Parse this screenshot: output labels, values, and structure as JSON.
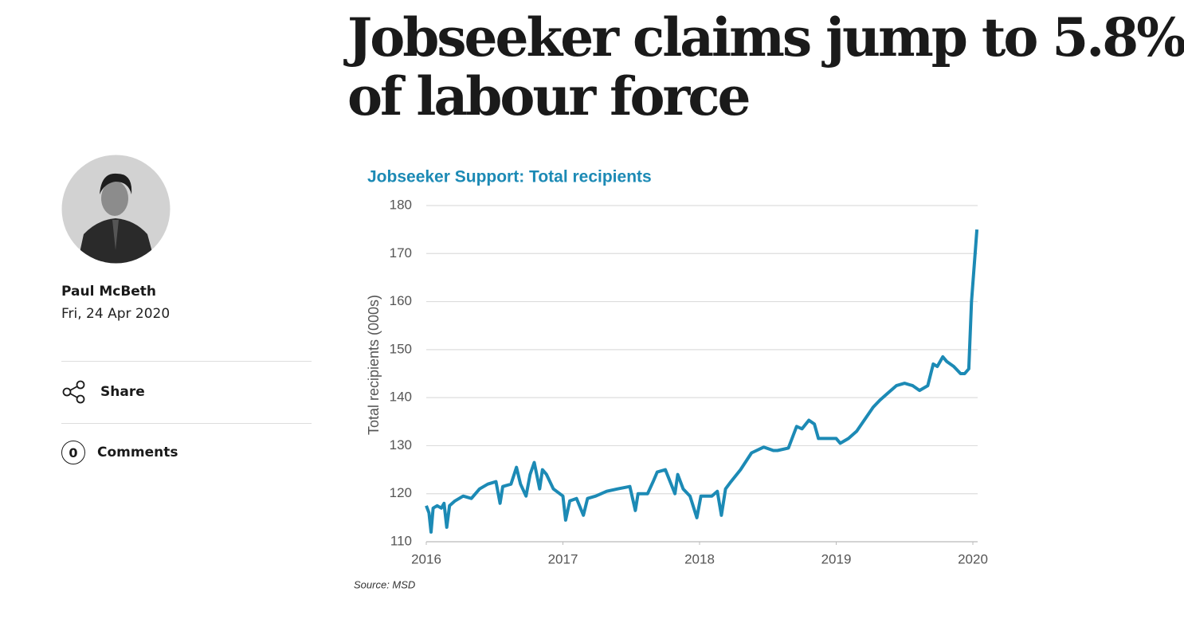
{
  "article": {
    "headline": [
      "Jobseeker claims jump to 5.8%",
      "of labour force"
    ],
    "author": "Paul McBeth",
    "date": "Fri, 24 Apr 2020",
    "share": "Share",
    "comments_count": "0",
    "comments": "Comments"
  },
  "chart_data": {
    "type": "line",
    "title": "Jobseeker Support: Total recipients",
    "y_label": "Total recipients (000s)",
    "source": "Source: MSD",
    "xlim": [
      2016,
      2020
    ],
    "xticks": [
      2016,
      2017,
      2018,
      2019,
      2020
    ],
    "ylim": [
      110,
      180
    ],
    "yticks": [
      110,
      120,
      130,
      140,
      150,
      160,
      170,
      180
    ],
    "grid": true,
    "series": [
      {
        "name": "Total recipients",
        "color": "#1c8ab5",
        "x": [
          2016.0,
          2016.02,
          2016.035,
          2016.05,
          2016.08,
          2016.11,
          2016.13,
          2016.15,
          2016.17,
          2016.21,
          2016.27,
          2016.33,
          2016.39,
          2016.45,
          2016.51,
          2016.54,
          2016.56,
          2016.62,
          2016.66,
          2016.69,
          2016.73,
          2016.76,
          2016.79,
          2016.83,
          2016.85,
          2016.88,
          2016.93,
          2017.0,
          2017.02,
          2017.05,
          2017.1,
          2017.15,
          2017.18,
          2017.24,
          2017.32,
          2017.4,
          2017.49,
          2017.53,
          2017.55,
          2017.62,
          2017.66,
          2017.69,
          2017.75,
          2017.82,
          2017.84,
          2017.88,
          2017.93,
          2017.98,
          2018.01,
          2018.09,
          2018.13,
          2018.16,
          2018.19,
          2018.23,
          2018.3,
          2018.38,
          2018.47,
          2018.54,
          2018.57,
          2018.65,
          2018.71,
          2018.75,
          2018.8,
          2018.84,
          2018.87,
          2018.94,
          2019.0,
          2019.03,
          2019.09,
          2019.15,
          2019.21,
          2019.27,
          2019.32,
          2019.38,
          2019.44,
          2019.5,
          2019.56,
          2019.61,
          2019.67,
          2019.71,
          2019.74,
          2019.78,
          2019.81,
          2019.86,
          2019.91,
          2019.94,
          2019.97,
          2019.99,
          2020.03
        ],
        "values": [
          117.5,
          116,
          112,
          117,
          117.5,
          117,
          118,
          113,
          117.5,
          118.5,
          119.5,
          119,
          121,
          122,
          122.5,
          118,
          121.5,
          122,
          125.5,
          122,
          119.5,
          124,
          126.5,
          121,
          125,
          124,
          121,
          119.5,
          114.5,
          118.5,
          119,
          115.5,
          119,
          119.5,
          120.5,
          121,
          121.5,
          116.5,
          120,
          120,
          122.5,
          124.5,
          125,
          120,
          124,
          121,
          119.5,
          115,
          119.5,
          119.5,
          120.5,
          115.5,
          121,
          122.5,
          125,
          128.5,
          129.7,
          129,
          129,
          129.5,
          134,
          133.5,
          135.3,
          134.5,
          131.5,
          131.5,
          131.5,
          130.5,
          131.5,
          133,
          135.5,
          138,
          139.5,
          141,
          142.5,
          143,
          142.5,
          141.5,
          142.5,
          147,
          146.5,
          148.5,
          147.5,
          146.5,
          145,
          145,
          146,
          160,
          175
        ]
      }
    ]
  }
}
